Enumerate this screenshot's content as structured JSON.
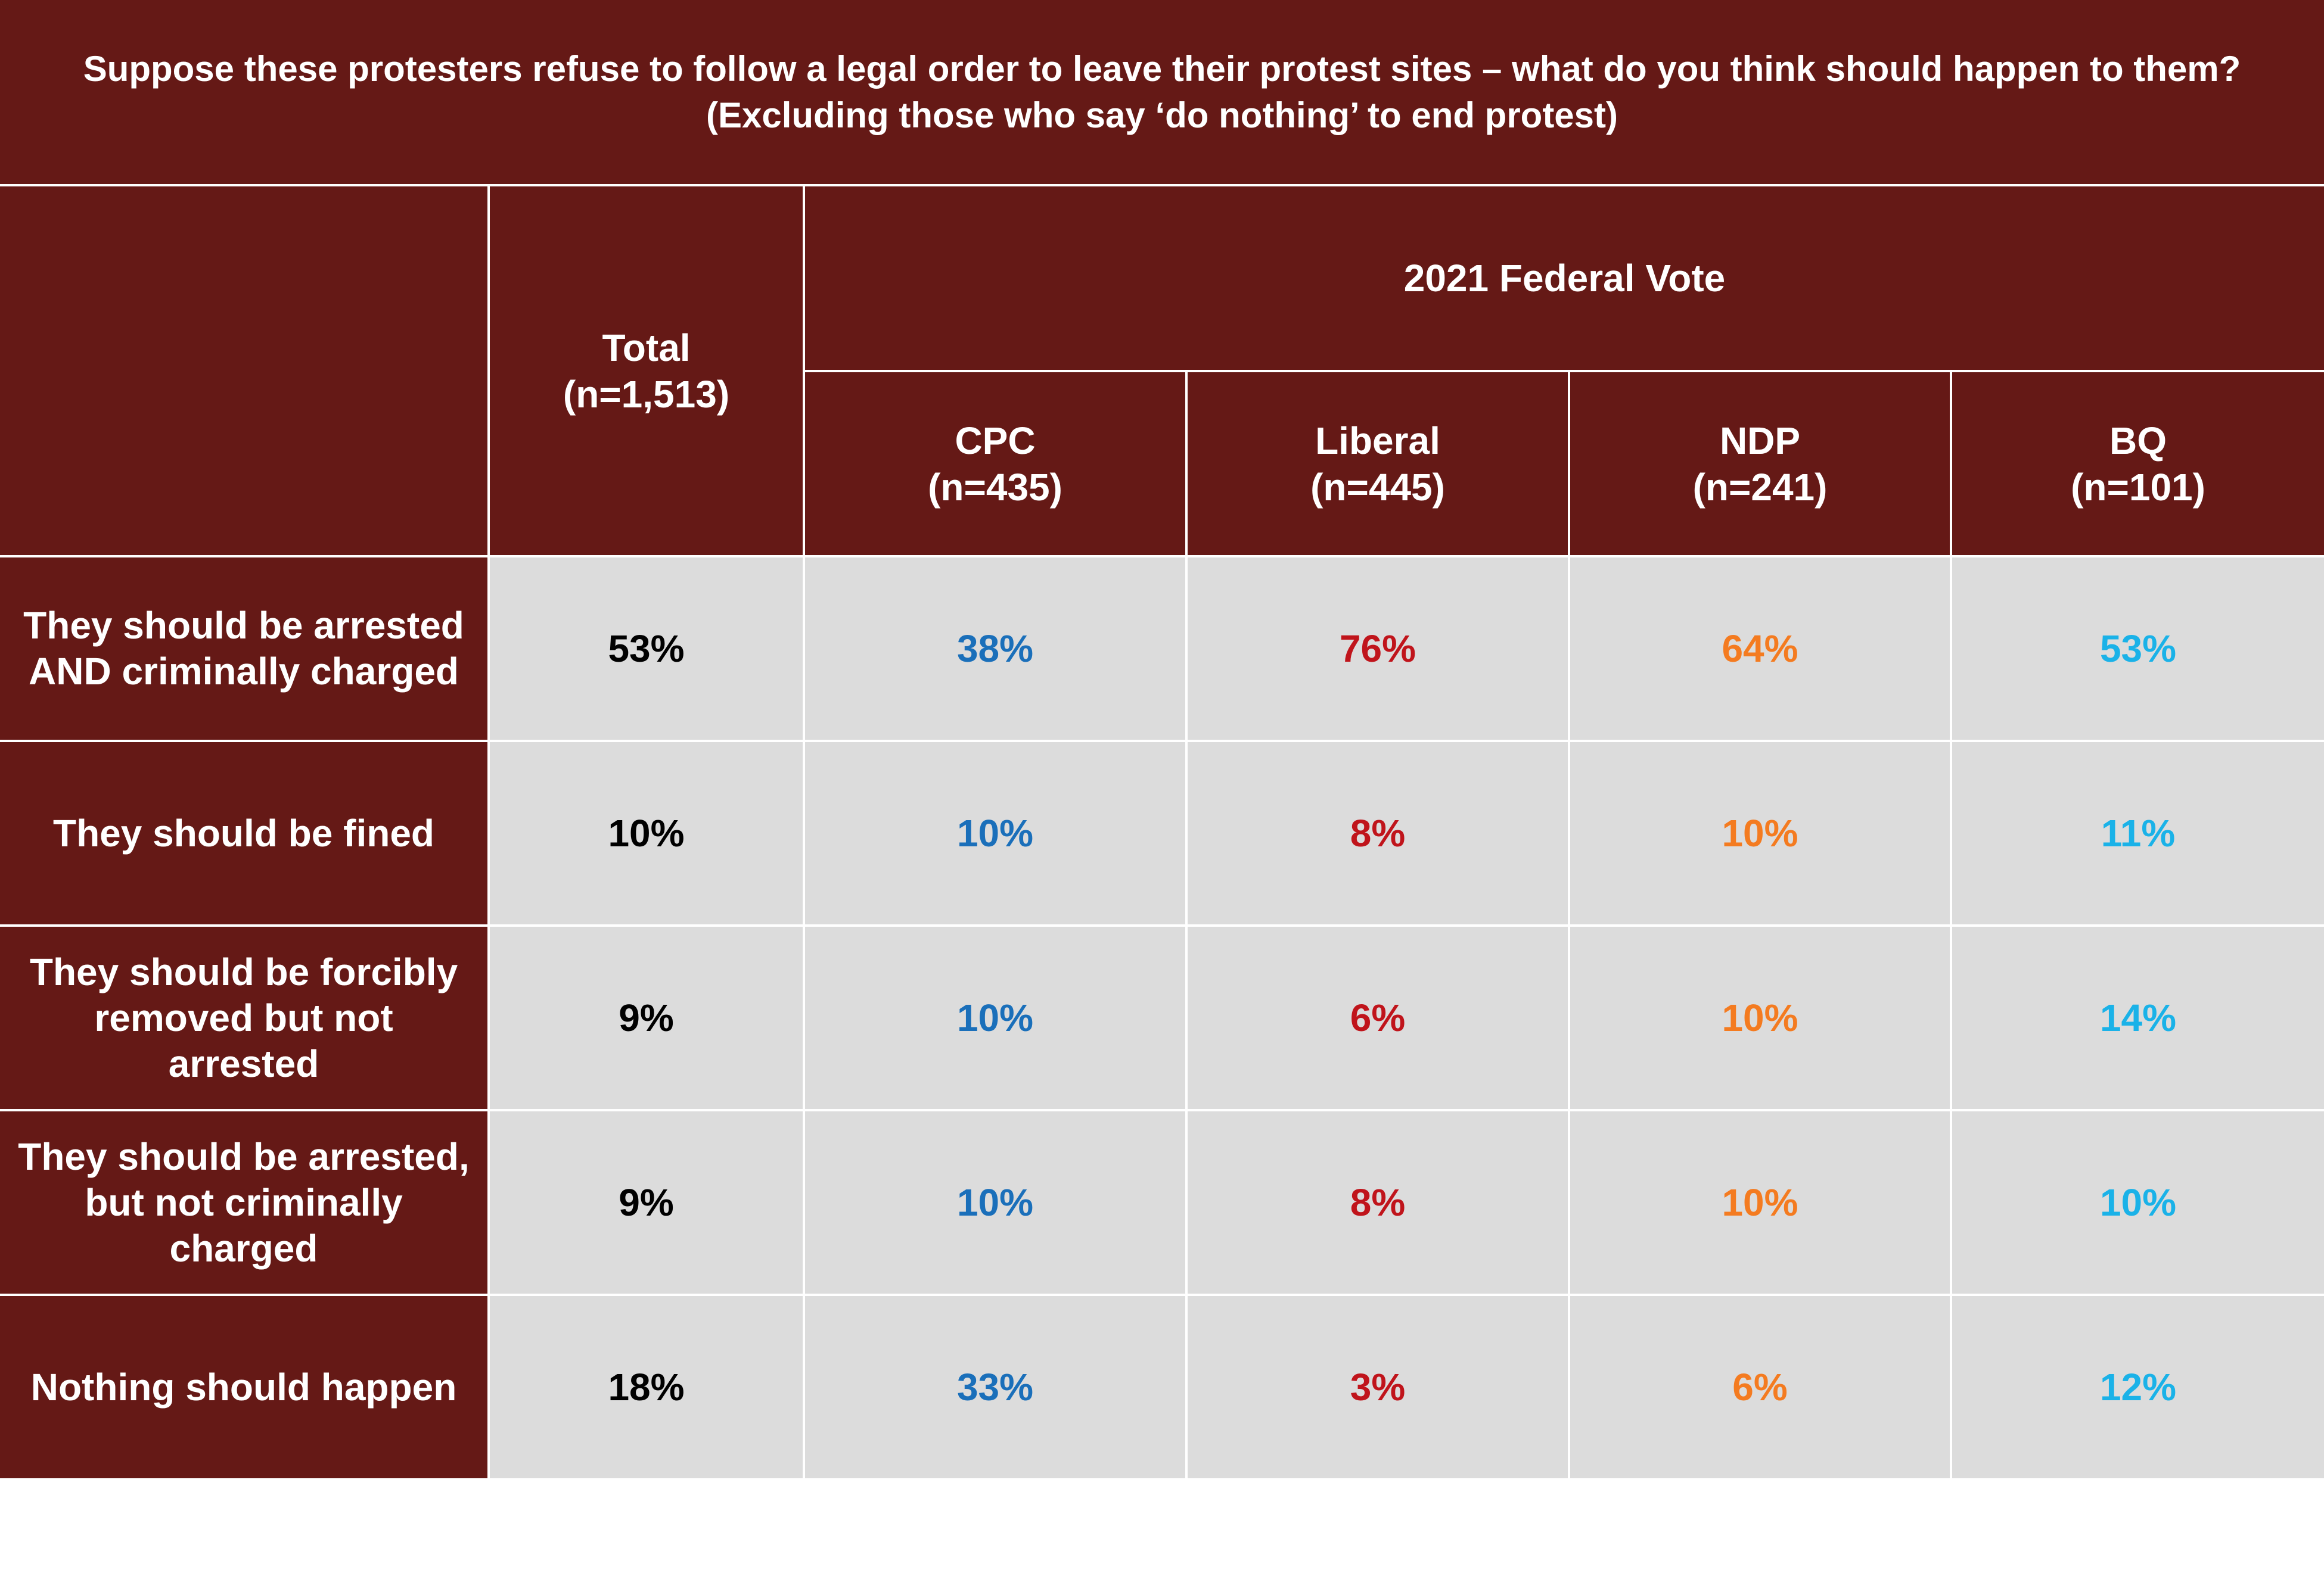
{
  "chart_data": {
    "type": "table",
    "title": "Suppose these protesters refuse to follow a legal order to leave their protest sites – what do you think should happen to them? (Excluding those who say ‘do nothing’ to end protest)",
    "group_header": "2021 Federal Vote",
    "columns": [
      {
        "label": "Total",
        "n": "(n=1,513)",
        "color": "#000000"
      },
      {
        "label": "CPC",
        "n": "(n=435)",
        "color": "#1a6fba"
      },
      {
        "label": "Liberal",
        "n": "(n=445)",
        "color": "#c0141b"
      },
      {
        "label": "NDP",
        "n": "(n=241)",
        "color": "#f47b20"
      },
      {
        "label": "BQ",
        "n": "(n=101)",
        "color": "#1ab2e8"
      }
    ],
    "rows": [
      {
        "label": "They should be arrested AND criminally charged",
        "values": [
          "53%",
          "38%",
          "76%",
          "64%",
          "53%"
        ]
      },
      {
        "label": "They should be fined",
        "values": [
          "10%",
          "10%",
          "8%",
          "10%",
          "11%"
        ]
      },
      {
        "label": "They should be forcibly removed but not arrested",
        "values": [
          "9%",
          "10%",
          "6%",
          "10%",
          "14%"
        ]
      },
      {
        "label": "They should be arrested, but not criminally charged",
        "values": [
          "9%",
          "10%",
          "8%",
          "10%",
          "10%"
        ]
      },
      {
        "label": "Nothing should happen",
        "values": [
          "18%",
          "33%",
          "3%",
          "6%",
          "12%"
        ]
      }
    ],
    "colors": {
      "header_bg": "#651916",
      "cell_bg": "#dcdcdc"
    }
  }
}
